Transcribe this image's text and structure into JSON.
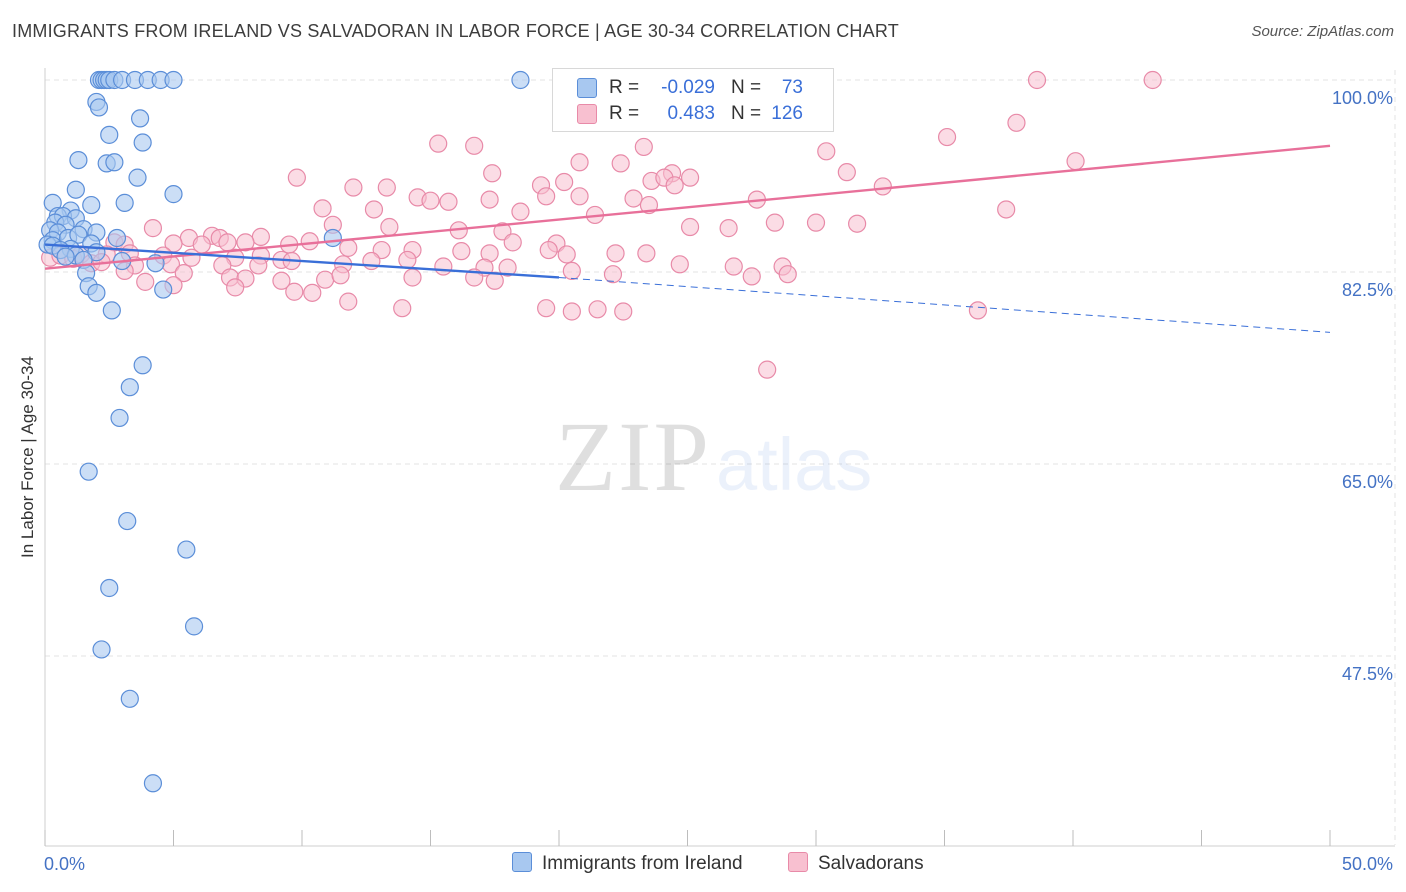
{
  "title": "IMMIGRANTS FROM IRELAND VS SALVADORAN IN LABOR FORCE | AGE 30-34 CORRELATION CHART",
  "source": "Source: ZipAtlas.com",
  "watermark": {
    "part1": "ZIP",
    "part2": "atlas"
  },
  "legend": {
    "r_key": "R =",
    "n_key": "N =",
    "series": [
      {
        "name": "Immigrants from Ireland",
        "r": "-0.029",
        "n": "73",
        "fill": "#a8c8f0",
        "stroke": "#5b8ed8"
      },
      {
        "name": "Salvadorans",
        "r": "0.483",
        "n": "126",
        "fill": "#f8c0d0",
        "stroke": "#e88aa8"
      }
    ]
  },
  "chart_data": {
    "type": "scatter",
    "title": "IMMIGRANTS FROM IRELAND VS SALVADORAN IN LABOR FORCE | AGE 30-34 CORRELATION CHART",
    "xlabel": "",
    "ylabel": "In Labor Force | Age 30-34",
    "xlim": [
      0,
      50
    ],
    "ylim": [
      33,
      102
    ],
    "x_tick_labels": [
      "0.0%",
      "50.0%"
    ],
    "y_ticks": [
      47.5,
      65.0,
      82.5,
      100.0
    ],
    "y_tick_labels": [
      "47.5%",
      "65.0%",
      "82.5%",
      "100.0%"
    ],
    "grid": "horizontal dashed",
    "colors": {
      "blue": "#3a6fd8",
      "pink": "#e8709a",
      "tick_label": "#4472c4"
    },
    "series": [
      {
        "name": "Immigrants from Ireland",
        "trend": {
          "solid_x": [
            0,
            20
          ],
          "solid_y": [
            85.0,
            82.0
          ],
          "dashed_x": [
            20,
            50
          ],
          "dashed_y": [
            82.0,
            77.0
          ]
        },
        "points": [
          [
            2.1,
            100
          ],
          [
            2.2,
            100
          ],
          [
            2.3,
            100
          ],
          [
            2.4,
            100
          ],
          [
            2.5,
            100
          ],
          [
            2.7,
            100
          ],
          [
            3,
            100
          ],
          [
            3.5,
            100
          ],
          [
            4,
            100
          ],
          [
            4.5,
            100
          ],
          [
            5,
            100
          ],
          [
            18.5,
            100
          ],
          [
            2,
            98
          ],
          [
            2.1,
            97.5
          ],
          [
            3.7,
            96.5
          ],
          [
            2.5,
            95
          ],
          [
            3.8,
            94.3
          ],
          [
            1.3,
            92.7
          ],
          [
            2.4,
            92.4
          ],
          [
            2.7,
            92.5
          ],
          [
            3.6,
            91.1
          ],
          [
            1.2,
            90
          ],
          [
            5,
            89.6
          ],
          [
            3.1,
            88.8
          ],
          [
            0.3,
            88.8
          ],
          [
            1.8,
            88.6
          ],
          [
            1,
            88.1
          ],
          [
            0.5,
            87.6
          ],
          [
            0.7,
            87.6
          ],
          [
            1.2,
            87.4
          ],
          [
            0.4,
            87
          ],
          [
            0.8,
            86.8
          ],
          [
            0.2,
            86.3
          ],
          [
            0.5,
            86.1
          ],
          [
            1.5,
            86.4
          ],
          [
            2,
            86.1
          ],
          [
            2.8,
            85.6
          ],
          [
            0.3,
            85.4
          ],
          [
            0.9,
            85.6
          ],
          [
            1.3,
            85.9
          ],
          [
            1.8,
            85.1
          ],
          [
            0.1,
            85
          ],
          [
            0.3,
            84.9
          ],
          [
            1,
            84.6
          ],
          [
            0.6,
            84.5
          ],
          [
            2,
            84.3
          ],
          [
            11.2,
            85.6
          ],
          [
            1.2,
            84
          ],
          [
            0.8,
            83.9
          ],
          [
            1.5,
            83.6
          ],
          [
            3,
            83.5
          ],
          [
            4.3,
            83.3
          ],
          [
            1.6,
            82.4
          ],
          [
            1.7,
            81.2
          ],
          [
            2,
            80.6
          ],
          [
            4.6,
            80.9
          ],
          [
            2.6,
            79
          ],
          [
            3.8,
            74
          ],
          [
            3.3,
            72
          ],
          [
            2.9,
            69.2
          ],
          [
            1.7,
            64.3
          ],
          [
            3.2,
            59.8
          ],
          [
            5.5,
            57.2
          ],
          [
            2.5,
            53.7
          ],
          [
            5.8,
            50.2
          ],
          [
            2.2,
            48.1
          ],
          [
            3.3,
            43.6
          ],
          [
            4.2,
            35.9
          ]
        ]
      },
      {
        "name": "Salvadorans",
        "trend": {
          "x": [
            0,
            50
          ],
          "y": [
            82.8,
            94.0
          ]
        },
        "points": [
          [
            38.6,
            100
          ],
          [
            43.1,
            100
          ],
          [
            26.3,
            100
          ],
          [
            29.8,
            97
          ],
          [
            35.1,
            94.8
          ],
          [
            37.8,
            96.1
          ],
          [
            15.3,
            94.2
          ],
          [
            16.7,
            94
          ],
          [
            23.3,
            93.9
          ],
          [
            20.8,
            92.5
          ],
          [
            22.4,
            92.4
          ],
          [
            30.4,
            93.5
          ],
          [
            40.1,
            92.6
          ],
          [
            9.8,
            91.1
          ],
          [
            17.4,
            91.5
          ],
          [
            24.4,
            91.5
          ],
          [
            25.1,
            91.1
          ],
          [
            31.2,
            91.6
          ],
          [
            12,
            90.2
          ],
          [
            13.3,
            90.2
          ],
          [
            19.3,
            90.4
          ],
          [
            20.2,
            90.7
          ],
          [
            23.6,
            90.8
          ],
          [
            24.1,
            91.1
          ],
          [
            24.5,
            90.4
          ],
          [
            32.6,
            90.3
          ],
          [
            14.5,
            89.3
          ],
          [
            15,
            89
          ],
          [
            17.3,
            89.1
          ],
          [
            19.5,
            89.4
          ],
          [
            20.8,
            89.4
          ],
          [
            22.9,
            89.2
          ],
          [
            27.7,
            89.1
          ],
          [
            15.7,
            88.9
          ],
          [
            10.8,
            88.3
          ],
          [
            12.8,
            88.2
          ],
          [
            18.5,
            88
          ],
          [
            23.5,
            88.6
          ],
          [
            37.4,
            88.2
          ],
          [
            21.4,
            87.7
          ],
          [
            28.4,
            87
          ],
          [
            30,
            87
          ],
          [
            31.6,
            86.9
          ],
          [
            25.1,
            86.6
          ],
          [
            26.6,
            86.5
          ],
          [
            11.2,
            86.8
          ],
          [
            13.4,
            86.6
          ],
          [
            16.1,
            86.3
          ],
          [
            17.8,
            86.2
          ],
          [
            4.2,
            86.5
          ],
          [
            5.6,
            85.6
          ],
          [
            6.5,
            85.8
          ],
          [
            6.8,
            85.6
          ],
          [
            8.4,
            85.7
          ],
          [
            10.3,
            85.3
          ],
          [
            18.2,
            85.2
          ],
          [
            19.9,
            85.1
          ],
          [
            2.7,
            85.2
          ],
          [
            3.1,
            85
          ],
          [
            5,
            85.1
          ],
          [
            6.1,
            85
          ],
          [
            7.1,
            85.2
          ],
          [
            7.8,
            85.2
          ],
          [
            9.5,
            85
          ],
          [
            11.8,
            84.7
          ],
          [
            13.1,
            84.5
          ],
          [
            14.3,
            84.5
          ],
          [
            16.2,
            84.4
          ],
          [
            17.3,
            84.2
          ],
          [
            19.6,
            84.5
          ],
          [
            20.3,
            84.1
          ],
          [
            22.2,
            84.2
          ],
          [
            23.4,
            84.2
          ],
          [
            2.4,
            84.1
          ],
          [
            3.3,
            84.2
          ],
          [
            4.6,
            84
          ],
          [
            5.7,
            83.8
          ],
          [
            7.4,
            83.8
          ],
          [
            8.4,
            84
          ],
          [
            9.2,
            83.6
          ],
          [
            12.7,
            83.5
          ],
          [
            14.1,
            83.6
          ],
          [
            0.2,
            83.8
          ],
          [
            0.6,
            84
          ],
          [
            1.1,
            83.7
          ],
          [
            1.4,
            84.1
          ],
          [
            1.8,
            83.3
          ],
          [
            2.2,
            83.4
          ],
          [
            3.5,
            83.1
          ],
          [
            4.9,
            83.2
          ],
          [
            6.9,
            83.1
          ],
          [
            8.3,
            83.1
          ],
          [
            9.6,
            83.5
          ],
          [
            11.6,
            83.2
          ],
          [
            15.5,
            83
          ],
          [
            17.1,
            82.9
          ],
          [
            18,
            82.9
          ],
          [
            20.5,
            82.6
          ],
          [
            24.7,
            83.2
          ],
          [
            26.8,
            83
          ],
          [
            28.7,
            83
          ],
          [
            3.1,
            82.6
          ],
          [
            5.4,
            82.4
          ],
          [
            7.2,
            82
          ],
          [
            7.8,
            81.9
          ],
          [
            9.2,
            81.7
          ],
          [
            10.9,
            81.8
          ],
          [
            11.5,
            82.2
          ],
          [
            14.3,
            82
          ],
          [
            16.7,
            82
          ],
          [
            17.5,
            81.7
          ],
          [
            22.1,
            82.3
          ],
          [
            27.5,
            82.1
          ],
          [
            28.9,
            82.3
          ],
          [
            3.9,
            81.6
          ],
          [
            5,
            81.3
          ],
          [
            7.4,
            81.1
          ],
          [
            9.7,
            80.7
          ],
          [
            10.4,
            80.6
          ],
          [
            11.8,
            79.8
          ],
          [
            13.9,
            79.2
          ],
          [
            19.5,
            79.2
          ],
          [
            20.5,
            78.9
          ],
          [
            21.5,
            79.1
          ],
          [
            22.5,
            78.9
          ],
          [
            36.3,
            79
          ],
          [
            28.1,
            73.6
          ]
        ]
      }
    ]
  }
}
